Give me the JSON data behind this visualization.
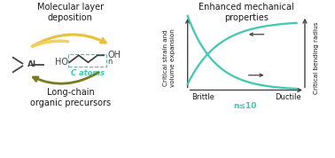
{
  "title_left": "Molecular layer\ndeposition",
  "title_right": "Enhanced mechanical\nproperties",
  "label_bottom_left": "Long-chain\norganic precursors",
  "label_xlabel_brittle": "Brittle",
  "label_xlabel_ductile": "Ductile",
  "label_n": "n≤10",
  "label_y_left": "Critical strain and\nvolume expansion",
  "label_y_right": "Critical bending radius",
  "label_c_atoms": "C atoms",
  "label_ho": "HO",
  "label_oh": "OH",
  "label_n_small": "n",
  "label_al": "Al",
  "teal_color": "#3ec9b0",
  "arrow_color": "#444444",
  "gold_color": "#e8c040",
  "olive_color": "#7a7a20",
  "bg_color": "#ffffff",
  "text_color": "#1a1a1a"
}
